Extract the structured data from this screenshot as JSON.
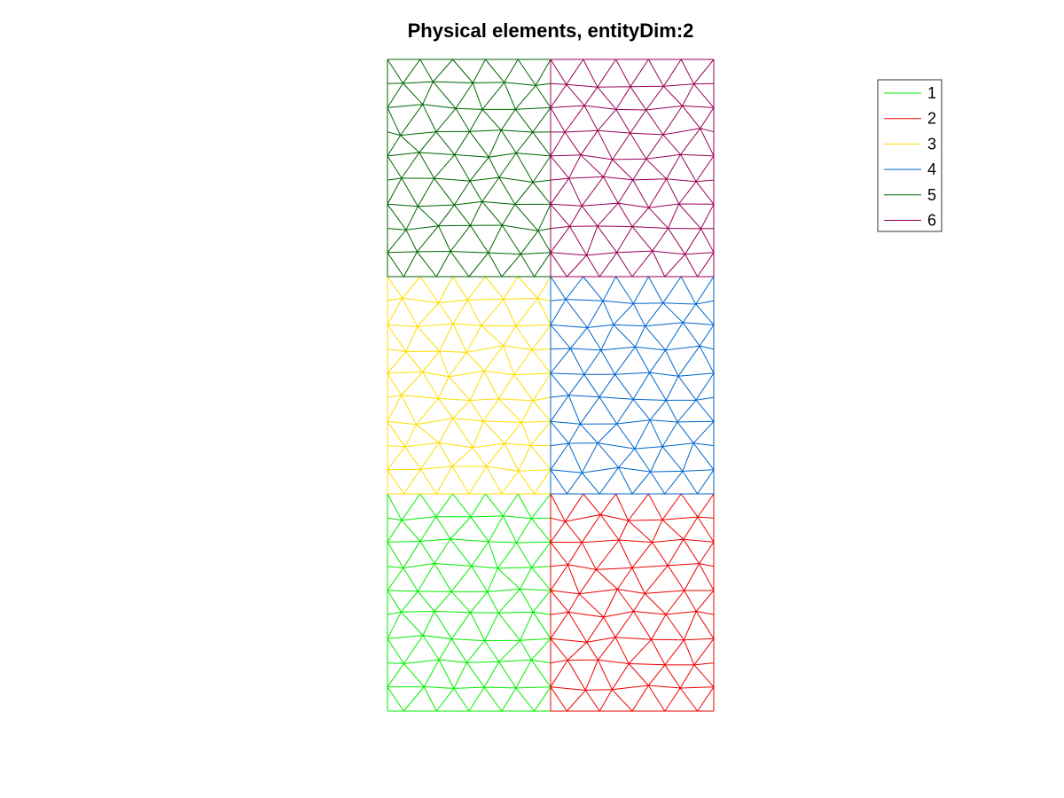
{
  "figure": {
    "title": "Physical elements, entityDim:2"
  },
  "regions": [
    {
      "id": "1",
      "color": "#00ee00",
      "grid_col": 0,
      "grid_row": 2,
      "density": 9
    },
    {
      "id": "2",
      "color": "#ee0000",
      "grid_col": 1,
      "grid_row": 2,
      "density": 9
    },
    {
      "id": "3",
      "color": "#ffdd00",
      "grid_col": 0,
      "grid_row": 1,
      "density": 9
    },
    {
      "id": "4",
      "color": "#0066cc",
      "grid_col": 1,
      "grid_row": 1,
      "density": 9
    },
    {
      "id": "5",
      "color": "#006600",
      "grid_col": 0,
      "grid_row": 0,
      "density": 9
    },
    {
      "id": "6",
      "color": "#990055",
      "grid_col": 1,
      "grid_row": 0,
      "density": 9
    }
  ],
  "legend": {
    "position": "top-right",
    "items": [
      {
        "label": "1",
        "color": "#00ee00"
      },
      {
        "label": "2",
        "color": "#ee0000"
      },
      {
        "label": "3",
        "color": "#ffdd00"
      },
      {
        "label": "4",
        "color": "#0066cc"
      },
      {
        "label": "5",
        "color": "#006600"
      },
      {
        "label": "6",
        "color": "#990055"
      }
    ]
  }
}
